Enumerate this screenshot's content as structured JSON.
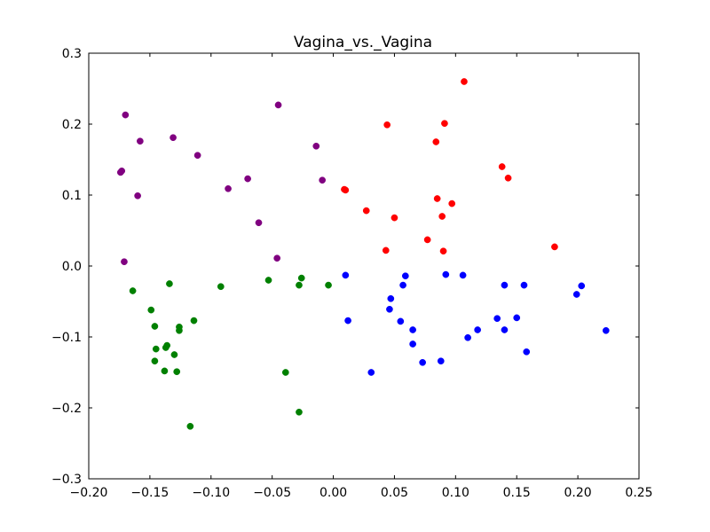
{
  "chart_data": {
    "type": "scatter",
    "title": "Vagina_vs._Vagina",
    "xlabel": "",
    "ylabel": "",
    "xlim": [
      -0.2,
      0.25
    ],
    "ylim": [
      -0.3,
      0.3
    ],
    "grid": false,
    "x_ticks": [
      "−0.20",
      "−0.15",
      "−0.10",
      "−0.05",
      "0.00",
      "0.05",
      "0.10",
      "0.15",
      "0.20",
      "0.25"
    ],
    "y_ticks": [
      "−0.3",
      "−0.2",
      "−0.1",
      "0.0",
      "0.1",
      "0.2",
      "0.3"
    ],
    "series": [
      {
        "color": "#800080",
        "points": [
          [
            -0.17,
            0.213
          ],
          [
            -0.158,
            0.176
          ],
          [
            -0.131,
            0.181
          ],
          [
            -0.111,
            0.156
          ],
          [
            -0.045,
            0.227
          ],
          [
            -0.014,
            0.169
          ],
          [
            -0.009,
            0.121
          ],
          [
            -0.07,
            0.123
          ],
          [
            -0.086,
            0.109
          ],
          [
            -0.061,
            0.061
          ],
          [
            -0.046,
            0.011
          ],
          [
            -0.174,
            0.132
          ],
          [
            -0.173,
            0.134
          ],
          [
            -0.16,
            0.099
          ],
          [
            -0.171,
            0.006
          ]
        ]
      },
      {
        "color": "#ff0000",
        "points": [
          [
            0.107,
            0.26
          ],
          [
            0.091,
            0.201
          ],
          [
            0.044,
            0.199
          ],
          [
            0.084,
            0.175
          ],
          [
            0.138,
            0.14
          ],
          [
            0.143,
            0.124
          ],
          [
            0.009,
            0.108
          ],
          [
            0.01,
            0.107
          ],
          [
            0.085,
            0.095
          ],
          [
            0.097,
            0.088
          ],
          [
            0.027,
            0.078
          ],
          [
            0.089,
            0.07
          ],
          [
            0.05,
            0.068
          ],
          [
            0.077,
            0.037
          ],
          [
            0.181,
            0.027
          ],
          [
            0.043,
            0.022
          ],
          [
            0.09,
            0.021
          ]
        ]
      },
      {
        "color": "#008000",
        "points": [
          [
            -0.164,
            -0.035
          ],
          [
            -0.134,
            -0.025
          ],
          [
            -0.092,
            -0.029
          ],
          [
            -0.053,
            -0.02
          ],
          [
            -0.026,
            -0.017
          ],
          [
            -0.004,
            -0.027
          ],
          [
            -0.028,
            -0.027
          ],
          [
            -0.149,
            -0.062
          ],
          [
            -0.146,
            -0.085
          ],
          [
            -0.114,
            -0.077
          ],
          [
            -0.126,
            -0.086
          ],
          [
            -0.126,
            -0.091
          ],
          [
            -0.136,
            -0.112
          ],
          [
            -0.137,
            -0.115
          ],
          [
            -0.145,
            -0.117
          ],
          [
            -0.13,
            -0.125
          ],
          [
            -0.146,
            -0.134
          ],
          [
            -0.138,
            -0.148
          ],
          [
            -0.128,
            -0.149
          ],
          [
            -0.039,
            -0.15
          ],
          [
            -0.028,
            -0.206
          ],
          [
            -0.117,
            -0.226
          ]
        ]
      },
      {
        "color": "#0000ff",
        "points": [
          [
            0.01,
            -0.013
          ],
          [
            0.059,
            -0.014
          ],
          [
            0.092,
            -0.012
          ],
          [
            0.106,
            -0.013
          ],
          [
            0.057,
            -0.027
          ],
          [
            0.14,
            -0.027
          ],
          [
            0.156,
            -0.027
          ],
          [
            0.203,
            -0.028
          ],
          [
            0.047,
            -0.046
          ],
          [
            0.046,
            -0.061
          ],
          [
            0.199,
            -0.04
          ],
          [
            0.134,
            -0.074
          ],
          [
            0.15,
            -0.073
          ],
          [
            0.012,
            -0.077
          ],
          [
            0.055,
            -0.078
          ],
          [
            0.065,
            -0.09
          ],
          [
            0.118,
            -0.09
          ],
          [
            0.14,
            -0.09
          ],
          [
            0.223,
            -0.091
          ],
          [
            0.11,
            -0.101
          ],
          [
            0.065,
            -0.11
          ],
          [
            0.158,
            -0.121
          ],
          [
            0.088,
            -0.134
          ],
          [
            0.073,
            -0.136
          ],
          [
            0.031,
            -0.15
          ]
        ]
      }
    ]
  }
}
